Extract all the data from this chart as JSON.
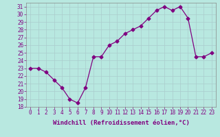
{
  "x": [
    0,
    1,
    2,
    3,
    4,
    5,
    6,
    7,
    8,
    9,
    10,
    11,
    12,
    13,
    14,
    15,
    16,
    17,
    18,
    19,
    20,
    21,
    22,
    23
  ],
  "y": [
    23,
    23,
    22.5,
    21.5,
    20.5,
    19,
    18.5,
    20.5,
    24.5,
    24.5,
    26,
    26.5,
    27.5,
    28,
    28.5,
    29.5,
    30.5,
    31,
    30.5,
    31,
    29.5,
    24.5,
    24.5,
    25
  ],
  "line_color": "#800080",
  "marker": "D",
  "marker_size": 2.5,
  "background_color": "#b8e8e0",
  "grid_color": "#aacccc",
  "xlabel": "Windchill (Refroidissement éolien,°C)",
  "ylim": [
    18,
    31.5
  ],
  "xlim": [
    -0.5,
    23.5
  ],
  "yticks": [
    18,
    19,
    20,
    21,
    22,
    23,
    24,
    25,
    26,
    27,
    28,
    29,
    30,
    31
  ],
  "xticks": [
    0,
    1,
    2,
    3,
    4,
    5,
    6,
    7,
    8,
    9,
    10,
    11,
    12,
    13,
    14,
    15,
    16,
    17,
    18,
    19,
    20,
    21,
    22,
    23
  ],
  "tick_fontsize": 5.5,
  "xlabel_fontsize": 6.5
}
